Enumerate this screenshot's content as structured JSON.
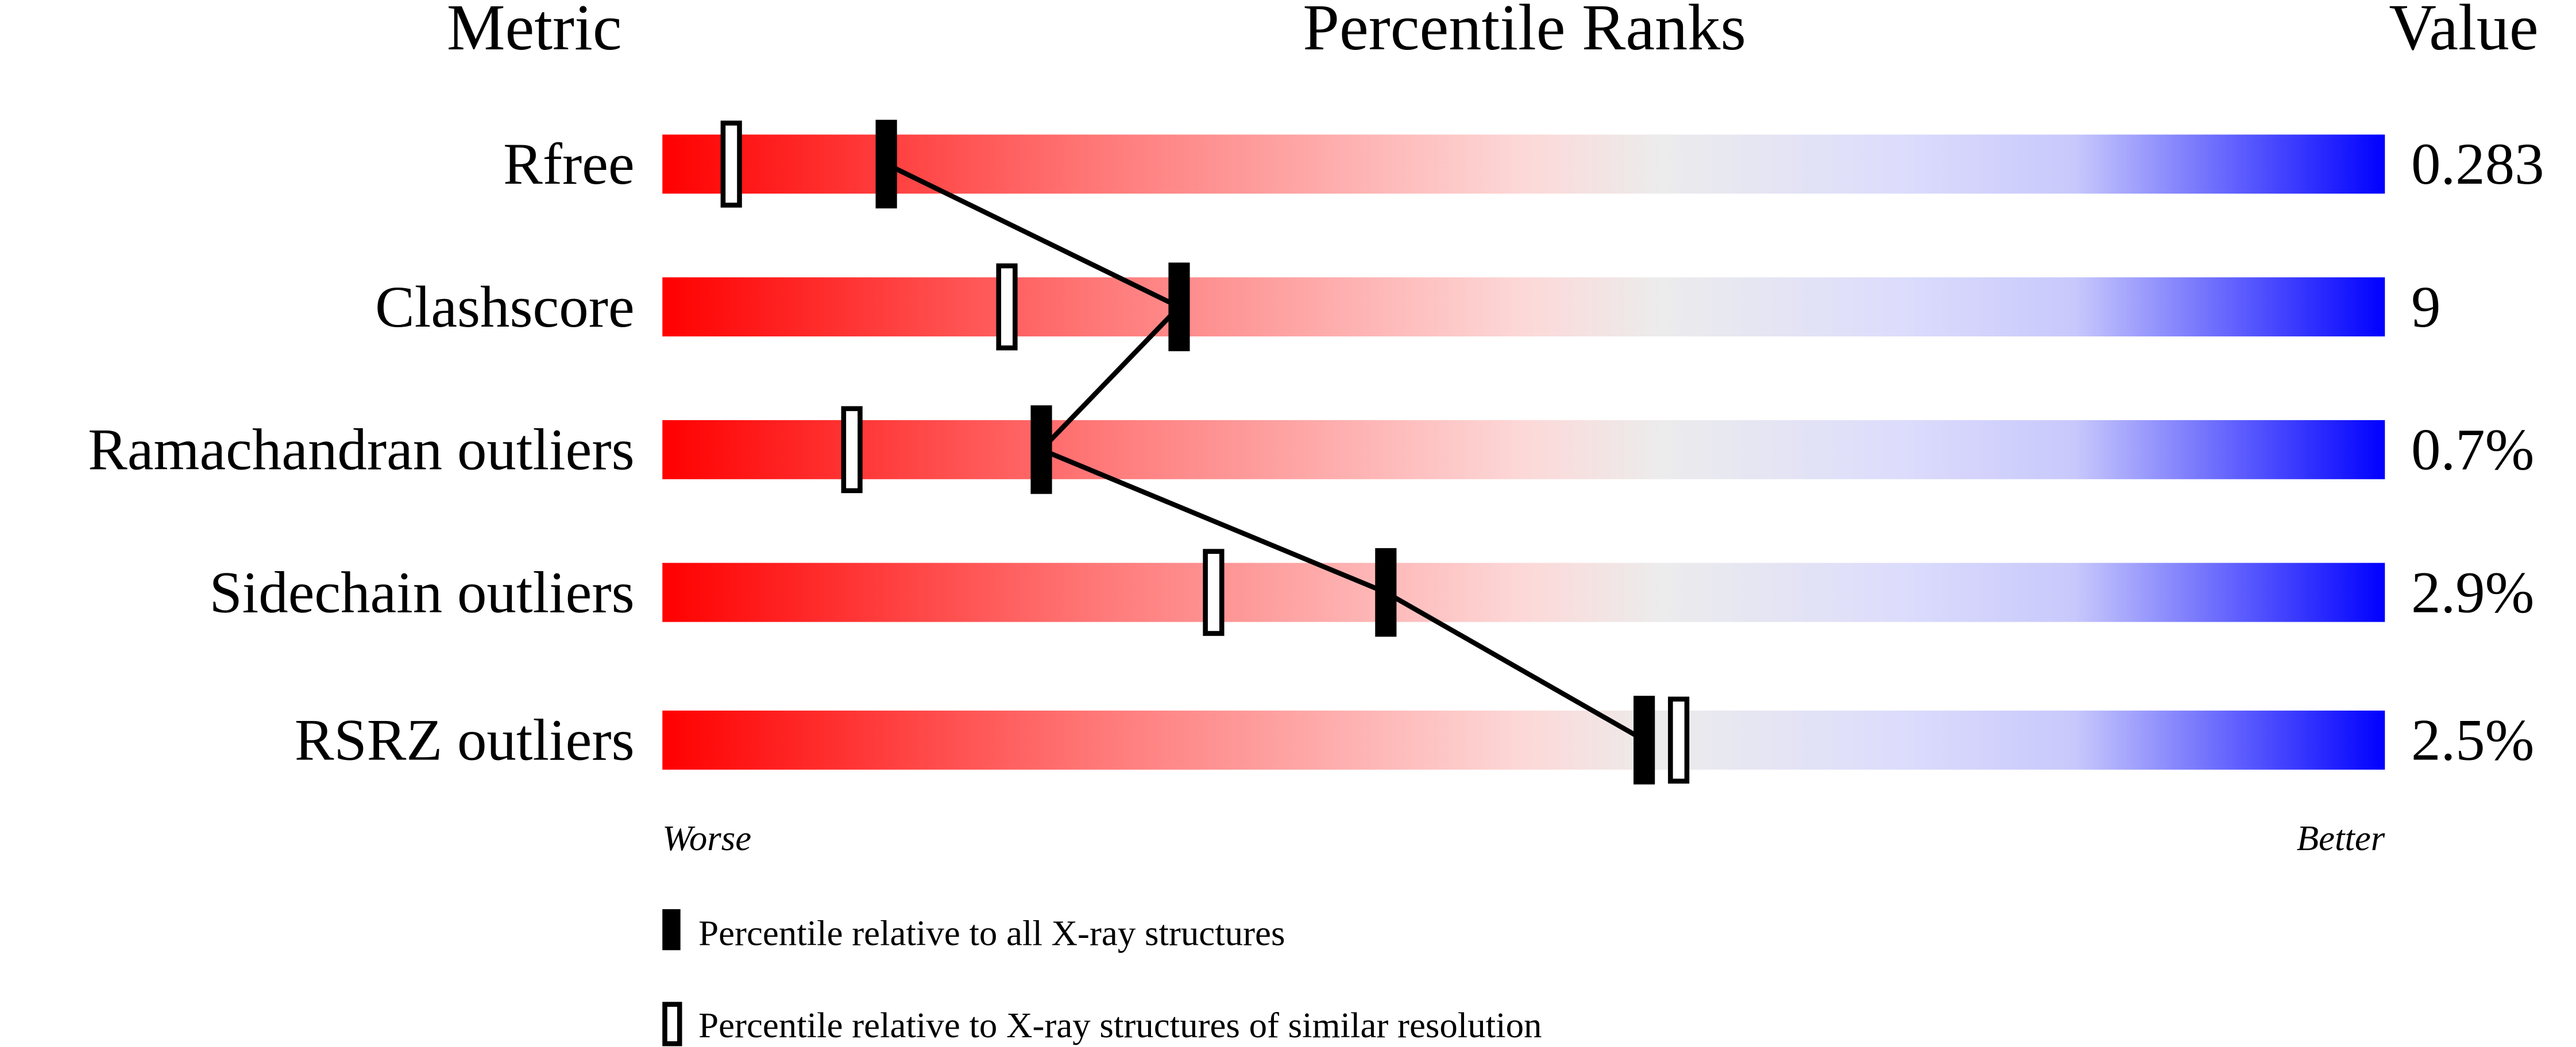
{
  "chart_data": {
    "type": "percentile-slider",
    "headers": {
      "metric": "Metric",
      "ranks": "Percentile Ranks",
      "value": "Value"
    },
    "xlim": [
      0,
      100
    ],
    "axis_labels": {
      "worse": "Worse",
      "better": "Better"
    },
    "colors": {
      "worse": "#ff0000",
      "middle": "#eeeeee",
      "better": "#0000ff"
    },
    "metrics": [
      {
        "name": "Rfree",
        "value": "0.283",
        "percentile_all": 13,
        "percentile_similar": 4
      },
      {
        "name": "Clashscore",
        "value": "9",
        "percentile_all": 30,
        "percentile_similar": 20
      },
      {
        "name": "Ramachandran outliers",
        "value": "0.7%",
        "percentile_all": 22,
        "percentile_similar": 11
      },
      {
        "name": "Sidechain outliers",
        "value": "2.9%",
        "percentile_all": 42,
        "percentile_similar": 32
      },
      {
        "name": "RSRZ outliers",
        "value": "2.5%",
        "percentile_all": 57,
        "percentile_similar": 59
      }
    ],
    "legend": [
      {
        "marker": "filled",
        "label": "Percentile relative to all X-ray structures"
      },
      {
        "marker": "open",
        "label": "Percentile relative to X-ray structures of similar resolution"
      }
    ]
  }
}
